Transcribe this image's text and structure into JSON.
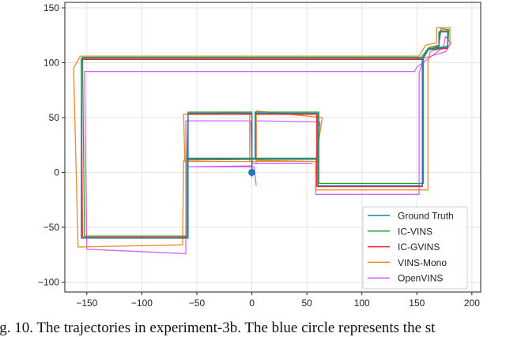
{
  "chart_data": {
    "type": "line",
    "title": "",
    "xlabel": "",
    "ylabel": "",
    "xlim": [
      -170,
      208
    ],
    "ylim": [
      -109,
      155
    ],
    "xticks": [
      -150,
      -100,
      -50,
      0,
      50,
      100,
      150,
      200
    ],
    "yticks": [
      -100,
      -50,
      0,
      50,
      100,
      150
    ],
    "grid": true,
    "legend_position": "bottom-right",
    "start_marker": {
      "x": 0,
      "y": 0,
      "color": "#1f77b4"
    },
    "series": [
      {
        "name": "Ground Truth",
        "color": "#1f77b4",
        "points": [
          [
            0,
            0
          ],
          [
            0,
            12
          ],
          [
            -58,
            12
          ],
          [
            -58,
            -60
          ],
          [
            -155,
            -60
          ],
          [
            -155,
            104
          ],
          [
            155,
            104
          ],
          [
            160,
            112
          ],
          [
            170,
            114
          ],
          [
            170,
            128
          ],
          [
            178,
            128
          ],
          [
            178,
            114
          ],
          [
            160,
            112
          ],
          [
            155,
            104
          ],
          [
            155,
            -12
          ],
          [
            60,
            -12
          ],
          [
            60,
            12
          ],
          [
            60,
            54
          ],
          [
            3,
            54
          ],
          [
            3,
            12
          ],
          [
            58,
            12
          ],
          [
            0,
            12
          ],
          [
            0,
            54
          ],
          [
            -58,
            54
          ],
          [
            -58,
            12
          ],
          [
            0,
            12
          ],
          [
            0,
            0
          ]
        ]
      },
      {
        "name": "IC-VINS",
        "color": "#2ca02c",
        "points": [
          [
            0,
            0
          ],
          [
            0,
            13
          ],
          [
            -59,
            13
          ],
          [
            -59,
            -58
          ],
          [
            -152,
            -58
          ],
          [
            -154,
            105
          ],
          [
            154,
            105
          ],
          [
            161,
            114
          ],
          [
            170,
            116
          ],
          [
            172,
            131
          ],
          [
            179,
            130
          ],
          [
            178,
            115
          ],
          [
            161,
            113
          ],
          [
            156,
            104
          ],
          [
            156,
            -10
          ],
          [
            61,
            -10
          ],
          [
            61,
            13
          ],
          [
            61,
            55
          ],
          [
            3,
            55
          ],
          [
            3,
            13
          ],
          [
            59,
            13
          ],
          [
            0,
            13
          ],
          [
            0,
            55
          ],
          [
            -58,
            55
          ],
          [
            -59,
            13
          ],
          [
            0,
            13
          ],
          [
            0,
            0
          ]
        ]
      },
      {
        "name": "IC-GVINS",
        "color": "#ff2020",
        "points": [
          [
            0,
            0
          ],
          [
            0,
            12
          ],
          [
            -59,
            12
          ],
          [
            -59,
            -59
          ],
          [
            -154,
            -59
          ],
          [
            -155,
            103
          ],
          [
            155,
            103
          ],
          [
            160,
            112
          ],
          [
            170,
            115
          ],
          [
            171,
            129
          ],
          [
            178,
            129
          ],
          [
            178,
            113
          ],
          [
            160,
            112
          ],
          [
            155,
            103
          ],
          [
            155,
            -13
          ],
          [
            59,
            -13
          ],
          [
            59,
            12
          ],
          [
            59,
            53
          ],
          [
            3,
            53
          ],
          [
            3,
            12
          ],
          [
            58,
            12
          ],
          [
            0,
            12
          ],
          [
            0,
            53
          ],
          [
            -58,
            53
          ],
          [
            -58,
            12
          ],
          [
            0,
            12
          ],
          [
            0,
            0
          ]
        ]
      },
      {
        "name": "VINS-Mono",
        "color": "#e8892a",
        "points": [
          [
            0,
            -5
          ],
          [
            0,
            12
          ],
          [
            -62,
            11
          ],
          [
            -63,
            -66
          ],
          [
            -158,
            -68
          ],
          [
            -162,
            95
          ],
          [
            -156,
            106
          ],
          [
            152,
            106
          ],
          [
            158,
            116
          ],
          [
            168,
            118
          ],
          [
            168,
            132
          ],
          [
            180,
            132
          ],
          [
            180,
            116
          ],
          [
            162,
            110
          ],
          [
            160,
            100
          ],
          [
            160,
            -16
          ],
          [
            58,
            -16
          ],
          [
            58,
            10
          ],
          [
            64,
            50
          ],
          [
            4,
            56
          ],
          [
            4,
            11
          ],
          [
            60,
            10
          ],
          [
            -2,
            10
          ],
          [
            -2,
            55
          ],
          [
            -62,
            53
          ],
          [
            -61,
            10
          ],
          [
            0,
            10
          ],
          [
            0,
            0
          ]
        ]
      },
      {
        "name": "OpenVINS",
        "color": "#cc66ff",
        "points": [
          [
            0,
            0
          ],
          [
            0,
            6
          ],
          [
            -60,
            5
          ],
          [
            -60,
            -74
          ],
          [
            -150,
            -70
          ],
          [
            -152,
            92
          ],
          [
            148,
            92
          ],
          [
            150,
            96
          ],
          [
            166,
            108
          ],
          [
            174,
            114
          ],
          [
            176,
            124
          ],
          [
            181,
            118
          ],
          [
            176,
            110
          ],
          [
            156,
            104
          ],
          [
            152,
            90
          ],
          [
            152,
            -20
          ],
          [
            58,
            -20
          ],
          [
            58,
            5
          ],
          [
            62,
            46
          ],
          [
            4,
            47
          ],
          [
            4,
            8
          ],
          [
            55,
            8
          ],
          [
            0,
            8
          ],
          [
            -1,
            47
          ],
          [
            -60,
            47
          ],
          [
            -60,
            5
          ],
          [
            2,
            5
          ],
          [
            4,
            -12
          ]
        ]
      }
    ]
  },
  "caption": "ig. 10. The trajectories in experiment-3b. The blue circle represents the st"
}
